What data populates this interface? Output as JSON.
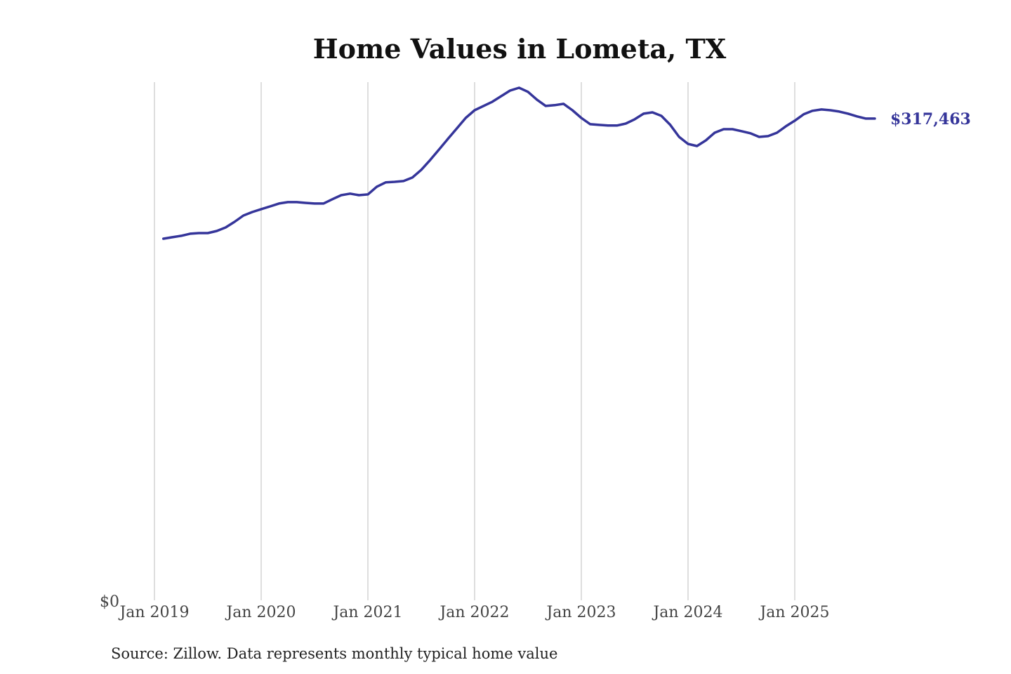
{
  "chart_data": {
    "type": "line",
    "title": "Home Values in Lometa, TX",
    "xlabel": "",
    "ylabel": "",
    "x_start": "Feb 2019",
    "x_frequency": "monthly",
    "x_ticks": [
      "Jan 2019",
      "Jan 2020",
      "Jan 2021",
      "Jan 2022",
      "Jan 2023",
      "Jan 2024",
      "Jan 2025"
    ],
    "y_ticks": [
      "$0"
    ],
    "ylim": [
      0,
      341500
    ],
    "grid": "vertical",
    "series": [
      {
        "name": "Typical home value",
        "color": "#35359a",
        "values": [
          238300,
          239300,
          240200,
          241600,
          242000,
          242000,
          243400,
          245700,
          249400,
          253600,
          255900,
          257800,
          259600,
          261500,
          262400,
          262400,
          261900,
          261500,
          261500,
          264300,
          267000,
          268000,
          267000,
          267500,
          272600,
          275400,
          275800,
          276300,
          278600,
          283700,
          290200,
          297100,
          304100,
          311000,
          317900,
          323000,
          325800,
          328600,
          332300,
          336000,
          337800,
          335100,
          330000,
          325800,
          326300,
          327200,
          323000,
          317900,
          313800,
          313300,
          312900,
          312900,
          314200,
          317000,
          320700,
          321600,
          319300,
          313300,
          305400,
          300800,
          299400,
          303100,
          308200,
          310500,
          310500,
          309200,
          307800,
          305400,
          305900,
          308200,
          312400,
          316100,
          320300,
          322600,
          323500,
          323000,
          322100,
          320700,
          318900,
          317500,
          317463
        ]
      }
    ],
    "end_label": "$317,463",
    "source": "Source: Zillow. Data represents monthly typical home value"
  }
}
